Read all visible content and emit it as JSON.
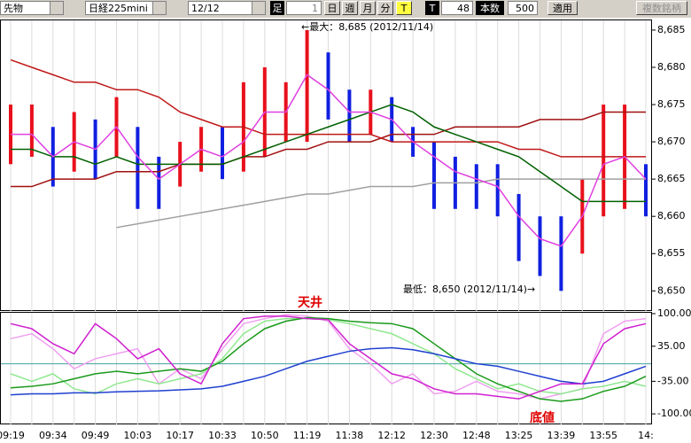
{
  "toolbar": {
    "items": [
      "先物",
      "日経225mini",
      "12/12",
      "足",
      "1",
      "日",
      "週",
      "月",
      "分",
      "T",
      "T",
      "48",
      "本数",
      "500",
      "適用",
      "複数銘柄"
    ]
  },
  "chart_data": [
    {
      "type": "line",
      "categories": [
        "09:19",
        null,
        "09:34",
        null,
        "09:49",
        null,
        "10:03",
        null,
        "10:17",
        null,
        "10:33",
        null,
        "10:50",
        null,
        "11:19",
        null,
        "11:38",
        null,
        "12:12",
        null,
        "12:30",
        null,
        "12:48",
        null,
        "13:25",
        null,
        "13:39",
        null,
        "13:55",
        null,
        "14:"
      ],
      "ylim": [
        8647.3,
        8686.3
      ],
      "yticks": [
        {
          "value": 8650,
          "label": "8,650"
        },
        {
          "value": 8655,
          "label": "8,655"
        },
        {
          "value": 8660,
          "label": "8,660"
        },
        {
          "value": 8665,
          "label": "8,665"
        },
        {
          "value": 8670,
          "label": "8,670"
        },
        {
          "value": 8675,
          "label": "8,675"
        },
        {
          "value": 8680,
          "label": "8,680"
        },
        {
          "value": 8685,
          "label": "8,685"
        }
      ],
      "range_bars": {
        "up_color": "#e8101c",
        "down_color": "#1020e0",
        "high": [
          8675,
          8675,
          8672,
          8674,
          8673,
          8676,
          8672,
          8668,
          8670,
          8672,
          8672,
          8678,
          8680,
          8678,
          8685,
          8682,
          8677,
          8677,
          8676,
          8672,
          8670,
          8668,
          8667,
          8667,
          8663,
          8660,
          8660,
          8665,
          8675,
          8675,
          8667
        ],
        "low": [
          8667,
          8668,
          8664,
          8666,
          8665,
          8668,
          8661,
          8661,
          8664,
          8666,
          8665,
          8666,
          8668,
          8670,
          8670,
          8673,
          8670,
          8671,
          8670,
          8668,
          8661,
          8661,
          8661,
          8660,
          8654,
          8652,
          8650,
          8655,
          8660,
          8661,
          8660
        ]
      },
      "series": [
        {
          "color": "#a0a0a0",
          "values": [
            null,
            null,
            null,
            null,
            null,
            8658.5,
            8659,
            8659.5,
            8660,
            8660.5,
            8661,
            8661.5,
            8662,
            8662.5,
            8663,
            8663,
            8663.5,
            8664,
            8664,
            8664,
            8664.5,
            8664.5,
            8664.5,
            8665,
            8665,
            8665,
            8665,
            8665,
            8665,
            8665,
            8665
          ]
        },
        {
          "color": "#a01010",
          "values": [
            8664,
            8664,
            8665,
            8665,
            8665,
            8666,
            8666,
            8666,
            8667,
            8667,
            8667,
            8668,
            8668,
            8669,
            8669,
            8670,
            8670,
            8670,
            8671,
            8671,
            8671,
            8672,
            8672,
            8672,
            8672,
            8673,
            8673,
            8673,
            8674,
            8674,
            8674
          ]
        },
        {
          "color": "#c01818",
          "values": [
            8681,
            8680,
            8679,
            8678,
            8678,
            8677,
            8677,
            8676,
            8674,
            8673,
            8672,
            8672,
            8671,
            8671,
            8671,
            8671,
            8671,
            8671,
            8670,
            8670,
            8670,
            8670,
            8670,
            8670,
            8669,
            8669,
            8668,
            8668,
            8668,
            8668,
            8668
          ]
        },
        {
          "color": "#006000",
          "values": [
            8669,
            8669,
            8668,
            8668,
            8667,
            8668,
            8667,
            8667,
            8667,
            8667,
            8667,
            8668,
            8669,
            8670,
            8671,
            8672,
            8673,
            8674,
            8675,
            8674,
            8672,
            8671,
            8670,
            8669,
            8668,
            8666,
            8664,
            8662,
            8662,
            8662,
            8662
          ]
        },
        {
          "color": "#e040e0",
          "values": [
            8671,
            8671,
            8668,
            8670,
            8669,
            8672,
            8668,
            8665,
            8667,
            8669,
            8668,
            8670,
            8674,
            8674,
            8679,
            8677,
            8674,
            8674,
            8673,
            8670,
            8668,
            8666,
            8665,
            8664,
            8660,
            8657,
            8656,
            8660,
            8667,
            8668,
            8665
          ]
        }
      ],
      "annotations": [
        "←最大：8,685 (2012/11/14)",
        "最低：8,650 (2012/11/14)→"
      ]
    },
    {
      "type": "line",
      "ylim": [
        -121,
        101.8
      ],
      "yticks": [
        {
          "value": -100,
          "label": "-100.00"
        },
        {
          "value": -35,
          "label": "-35.00"
        },
        {
          "value": 35,
          "label": "35.00"
        },
        {
          "value": 100,
          "label": "100.00"
        }
      ],
      "reference_lines": [
        0
      ],
      "series": [
        {
          "color": "#f0a0f0",
          "values": [
            50,
            60,
            30,
            -10,
            10,
            20,
            30,
            -40,
            -10,
            -30,
            30,
            80,
            90,
            98,
            95,
            85,
            30,
            0,
            -40,
            -20,
            -60,
            -55,
            -35,
            -55,
            -60,
            -70,
            -60,
            -50,
            60,
            85,
            90
          ]
        },
        {
          "color": "#90e890",
          "values": [
            -20,
            -35,
            -20,
            -50,
            -60,
            -40,
            -30,
            -40,
            -30,
            -20,
            10,
            60,
            85,
            90,
            90,
            88,
            80,
            70,
            60,
            40,
            20,
            -10,
            -30,
            -50,
            -40,
            -55,
            -60,
            -50,
            -45,
            -35,
            -45
          ]
        },
        {
          "color": "#1a9a1a",
          "values": [
            -48,
            -45,
            -40,
            -30,
            -20,
            -15,
            -20,
            -15,
            -10,
            -15,
            5,
            40,
            70,
            85,
            92,
            90,
            85,
            82,
            80,
            70,
            40,
            10,
            -20,
            -40,
            -55,
            -70,
            -75,
            -70,
            -55,
            -45,
            -25
          ]
        },
        {
          "color": "#2040d0",
          "values": [
            -62,
            -60,
            -60,
            -58,
            -58,
            -56,
            -55,
            -54,
            -52,
            -50,
            -45,
            -35,
            -25,
            -10,
            5,
            15,
            25,
            30,
            32,
            28,
            20,
            10,
            0,
            -5,
            -15,
            -25,
            -35,
            -40,
            -35,
            -20,
            -5
          ]
        },
        {
          "color": "#d020d0",
          "values": [
            80,
            70,
            40,
            20,
            80,
            50,
            10,
            30,
            -20,
            -40,
            40,
            90,
            95,
            95,
            90,
            88,
            40,
            10,
            -20,
            -30,
            -50,
            -60,
            -60,
            -65,
            -70,
            -55,
            -40,
            -40,
            40,
            70,
            80
          ]
        }
      ],
      "annotations": [
        "天井",
        "底値"
      ]
    }
  ]
}
